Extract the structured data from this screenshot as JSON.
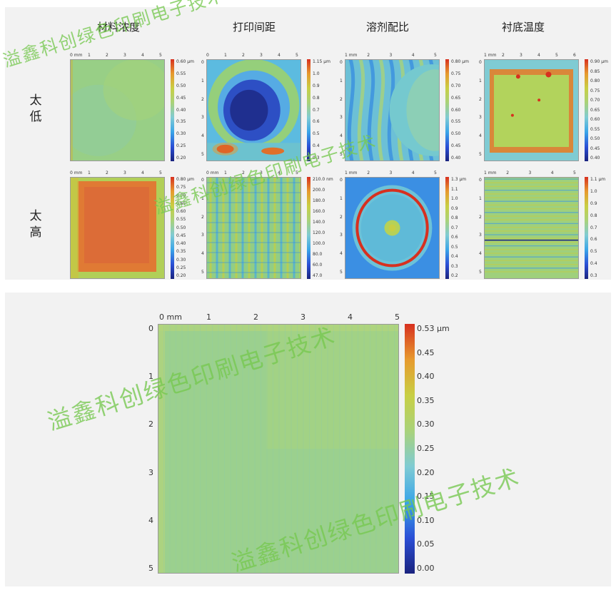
{
  "column_headers": [
    "材料浓度",
    "打印间距",
    "溶剂配比",
    "衬底温度"
  ],
  "row_labels": [
    "太低",
    "太高"
  ],
  "watermark_text": "溢鑫科创绿色印刷电子技术",
  "colormap": [
    "#1a237e",
    "#2b4fd6",
    "#3aa5e8",
    "#7fcbd3",
    "#a9d27a",
    "#c8cf44",
    "#e79a2e",
    "#d7301f"
  ],
  "small_maps": [
    {
      "row": 0,
      "col": 0,
      "x_ticks": [
        "0 mm",
        "1",
        "2",
        "3",
        "4",
        "5"
      ],
      "y_ticks": [],
      "colorbar_ticks": [
        "0.60 µm",
        "0.55",
        "0.50",
        "0.45",
        "0.40",
        "0.35",
        "0.30",
        "0.25",
        "0.20"
      ]
    },
    {
      "row": 0,
      "col": 1,
      "x_ticks": [
        "0",
        "1",
        "2",
        "3",
        "4",
        "5"
      ],
      "y_ticks": [
        "0",
        "1",
        "2",
        "3",
        "4",
        "5"
      ],
      "colorbar_ticks": [
        "1.15 µm",
        "1.0",
        "0.9",
        "0.8",
        "0.7",
        "0.6",
        "0.5",
        "0.4",
        "0.3"
      ]
    },
    {
      "row": 0,
      "col": 2,
      "x_ticks": [
        "1 mm",
        "2",
        "3",
        "4",
        "5"
      ],
      "y_ticks": [
        "0",
        "1",
        "2",
        "3",
        "4",
        "5"
      ],
      "colorbar_ticks": [
        "0.80 µm",
        "0.75",
        "0.70",
        "0.65",
        "0.60",
        "0.55",
        "0.50",
        "0.45",
        "0.40"
      ]
    },
    {
      "row": 0,
      "col": 3,
      "x_ticks": [
        "1 mm",
        "2",
        "3",
        "4",
        "5",
        "6"
      ],
      "y_ticks": [
        "0",
        "1",
        "2",
        "3",
        "4",
        "5"
      ],
      "colorbar_ticks": [
        "0.90 µm",
        "0.85",
        "0.80",
        "0.75",
        "0.70",
        "0.65",
        "0.60",
        "0.55",
        "0.50",
        "0.45",
        "0.40"
      ]
    },
    {
      "row": 1,
      "col": 0,
      "x_ticks": [
        "0 mm",
        "1",
        "2",
        "3",
        "4",
        "5"
      ],
      "y_ticks": [],
      "colorbar_ticks": [
        "0.80 µm",
        "0.75",
        "0.70",
        "0.65",
        "0.60",
        "0.55",
        "0.50",
        "0.45",
        "0.40",
        "0.35",
        "0.30",
        "0.25",
        "0.20"
      ]
    },
    {
      "row": 1,
      "col": 1,
      "x_ticks": [
        "0 mm",
        "1",
        "2",
        "3",
        "4",
        "5"
      ],
      "y_ticks": [
        "0",
        "1",
        "2",
        "3",
        "4",
        "5"
      ],
      "colorbar_ticks": [
        "210.0 nm",
        "200.0",
        "180.0",
        "160.0",
        "140.0",
        "120.0",
        "100.0",
        "80.0",
        "60.0",
        "47.0"
      ]
    },
    {
      "row": 1,
      "col": 2,
      "x_ticks": [
        "1 mm",
        "2",
        "3",
        "4",
        "5"
      ],
      "y_ticks": [
        "0",
        "1",
        "2",
        "3",
        "4",
        "5"
      ],
      "colorbar_ticks": [
        "1.3 µm",
        "1.1",
        "1.0",
        "0.9",
        "0.8",
        "0.7",
        "0.6",
        "0.5",
        "0.4",
        "0.3",
        "0.2"
      ]
    },
    {
      "row": 1,
      "col": 3,
      "x_ticks": [
        "1 mm",
        "2",
        "3",
        "4",
        "5"
      ],
      "y_ticks": [
        "0",
        "1",
        "2",
        "3",
        "4",
        "5"
      ],
      "colorbar_ticks": [
        "1.1 µm",
        "1.0",
        "0.9",
        "0.8",
        "0.7",
        "0.6",
        "0.5",
        "0.4",
        "0.3"
      ]
    }
  ],
  "main_map": {
    "x_ticks": [
      "0 mm",
      "1",
      "2",
      "3",
      "4",
      "5"
    ],
    "y_ticks": [
      "0",
      "1",
      "2",
      "3",
      "4",
      "5"
    ],
    "colorbar_ticks": [
      "0.53 µm",
      "0.45",
      "0.40",
      "0.35",
      "0.30",
      "0.25",
      "0.20",
      "0.15",
      "0.10",
      "0.05",
      "0.00"
    ]
  },
  "chart_data": [
    {
      "type": "heatmap",
      "title": "材料浓度 / 太低",
      "xlabel": "mm",
      "ylabel": "",
      "x_range": [
        0,
        5
      ],
      "colorbar_range": [
        0.2,
        0.6
      ],
      "colorbar_unit": "µm"
    },
    {
      "type": "heatmap",
      "title": "打印间距 / 太低",
      "xlabel": "mm",
      "ylabel": "",
      "x_range": [
        0,
        5
      ],
      "colorbar_range": [
        0.3,
        1.15
      ],
      "colorbar_unit": "µm"
    },
    {
      "type": "heatmap",
      "title": "溶剂配比 / 太低",
      "xlabel": "mm",
      "ylabel": "",
      "x_range": [
        1,
        5
      ],
      "colorbar_range": [
        0.4,
        0.8
      ],
      "colorbar_unit": "µm"
    },
    {
      "type": "heatmap",
      "title": "衬底温度 / 太低",
      "xlabel": "mm",
      "ylabel": "",
      "x_range": [
        1,
        6
      ],
      "colorbar_range": [
        0.4,
        0.9
      ],
      "colorbar_unit": "µm"
    },
    {
      "type": "heatmap",
      "title": "材料浓度 / 太高",
      "xlabel": "mm",
      "ylabel": "",
      "x_range": [
        0,
        5
      ],
      "colorbar_range": [
        0.2,
        0.8
      ],
      "colorbar_unit": "µm"
    },
    {
      "type": "heatmap",
      "title": "打印间距 / 太高",
      "xlabel": "mm",
      "ylabel": "",
      "x_range": [
        0,
        5
      ],
      "colorbar_range": [
        47.0,
        210.0
      ],
      "colorbar_unit": "nm"
    },
    {
      "type": "heatmap",
      "title": "溶剂配比 / 太高",
      "xlabel": "mm",
      "ylabel": "",
      "x_range": [
        1,
        5
      ],
      "colorbar_range": [
        0.2,
        1.3
      ],
      "colorbar_unit": "µm"
    },
    {
      "type": "heatmap",
      "title": "衬底温度 / 太高",
      "xlabel": "mm",
      "ylabel": "",
      "x_range": [
        1,
        5
      ],
      "colorbar_range": [
        0.3,
        1.1
      ],
      "colorbar_unit": "µm"
    },
    {
      "type": "heatmap",
      "title": "",
      "xlabel": "mm",
      "ylabel": "",
      "x_range": [
        0,
        5
      ],
      "y_range": [
        0,
        5
      ],
      "colorbar_range": [
        0.0,
        0.53
      ],
      "colorbar_unit": "µm"
    }
  ]
}
